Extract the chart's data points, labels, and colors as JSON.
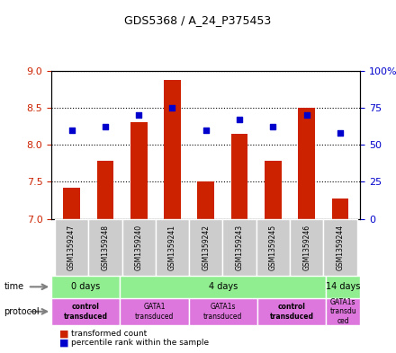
{
  "title": "GDS5368 / A_24_P375453",
  "samples": [
    "GSM1359247",
    "GSM1359248",
    "GSM1359240",
    "GSM1359241",
    "GSM1359242",
    "GSM1359243",
    "GSM1359245",
    "GSM1359246",
    "GSM1359244"
  ],
  "bar_values": [
    7.42,
    7.78,
    8.3,
    8.88,
    7.5,
    8.15,
    7.78,
    8.5,
    7.28
  ],
  "bar_bottom": 7.0,
  "percentile_values": [
    60,
    62,
    70,
    75,
    60,
    67,
    62,
    70,
    58
  ],
  "ylim": [
    7.0,
    9.0
  ],
  "ylim_right": [
    0,
    100
  ],
  "yticks_left": [
    7.0,
    7.5,
    8.0,
    8.5,
    9.0
  ],
  "yticks_right": [
    0,
    25,
    50,
    75,
    100
  ],
  "bar_color": "#cc2200",
  "dot_color": "#0000cc",
  "bg_color": "#ffffff",
  "plot_bg": "#ffffff",
  "time_groups": [
    {
      "label": "0 days",
      "start": 0,
      "end": 2,
      "color": "#90ee90"
    },
    {
      "label": "4 days",
      "start": 2,
      "end": 8,
      "color": "#90ee90"
    },
    {
      "label": "14 days",
      "start": 8,
      "end": 9,
      "color": "#90ee90"
    }
  ],
  "protocol_groups": [
    {
      "label": "control\ntransduced",
      "start": 0,
      "end": 2,
      "color": "#dd77dd",
      "bold": true
    },
    {
      "label": "GATA1\ntransduced",
      "start": 2,
      "end": 4,
      "color": "#dd77dd",
      "bold": false
    },
    {
      "label": "GATA1s\ntransduced",
      "start": 4,
      "end": 6,
      "color": "#dd77dd",
      "bold": false
    },
    {
      "label": "control\ntransduced",
      "start": 6,
      "end": 8,
      "color": "#dd77dd",
      "bold": true
    },
    {
      "label": "GATA1s\ntransdu\nced",
      "start": 8,
      "end": 9,
      "color": "#dd77dd",
      "bold": false
    }
  ],
  "sample_bg": "#cccccc"
}
